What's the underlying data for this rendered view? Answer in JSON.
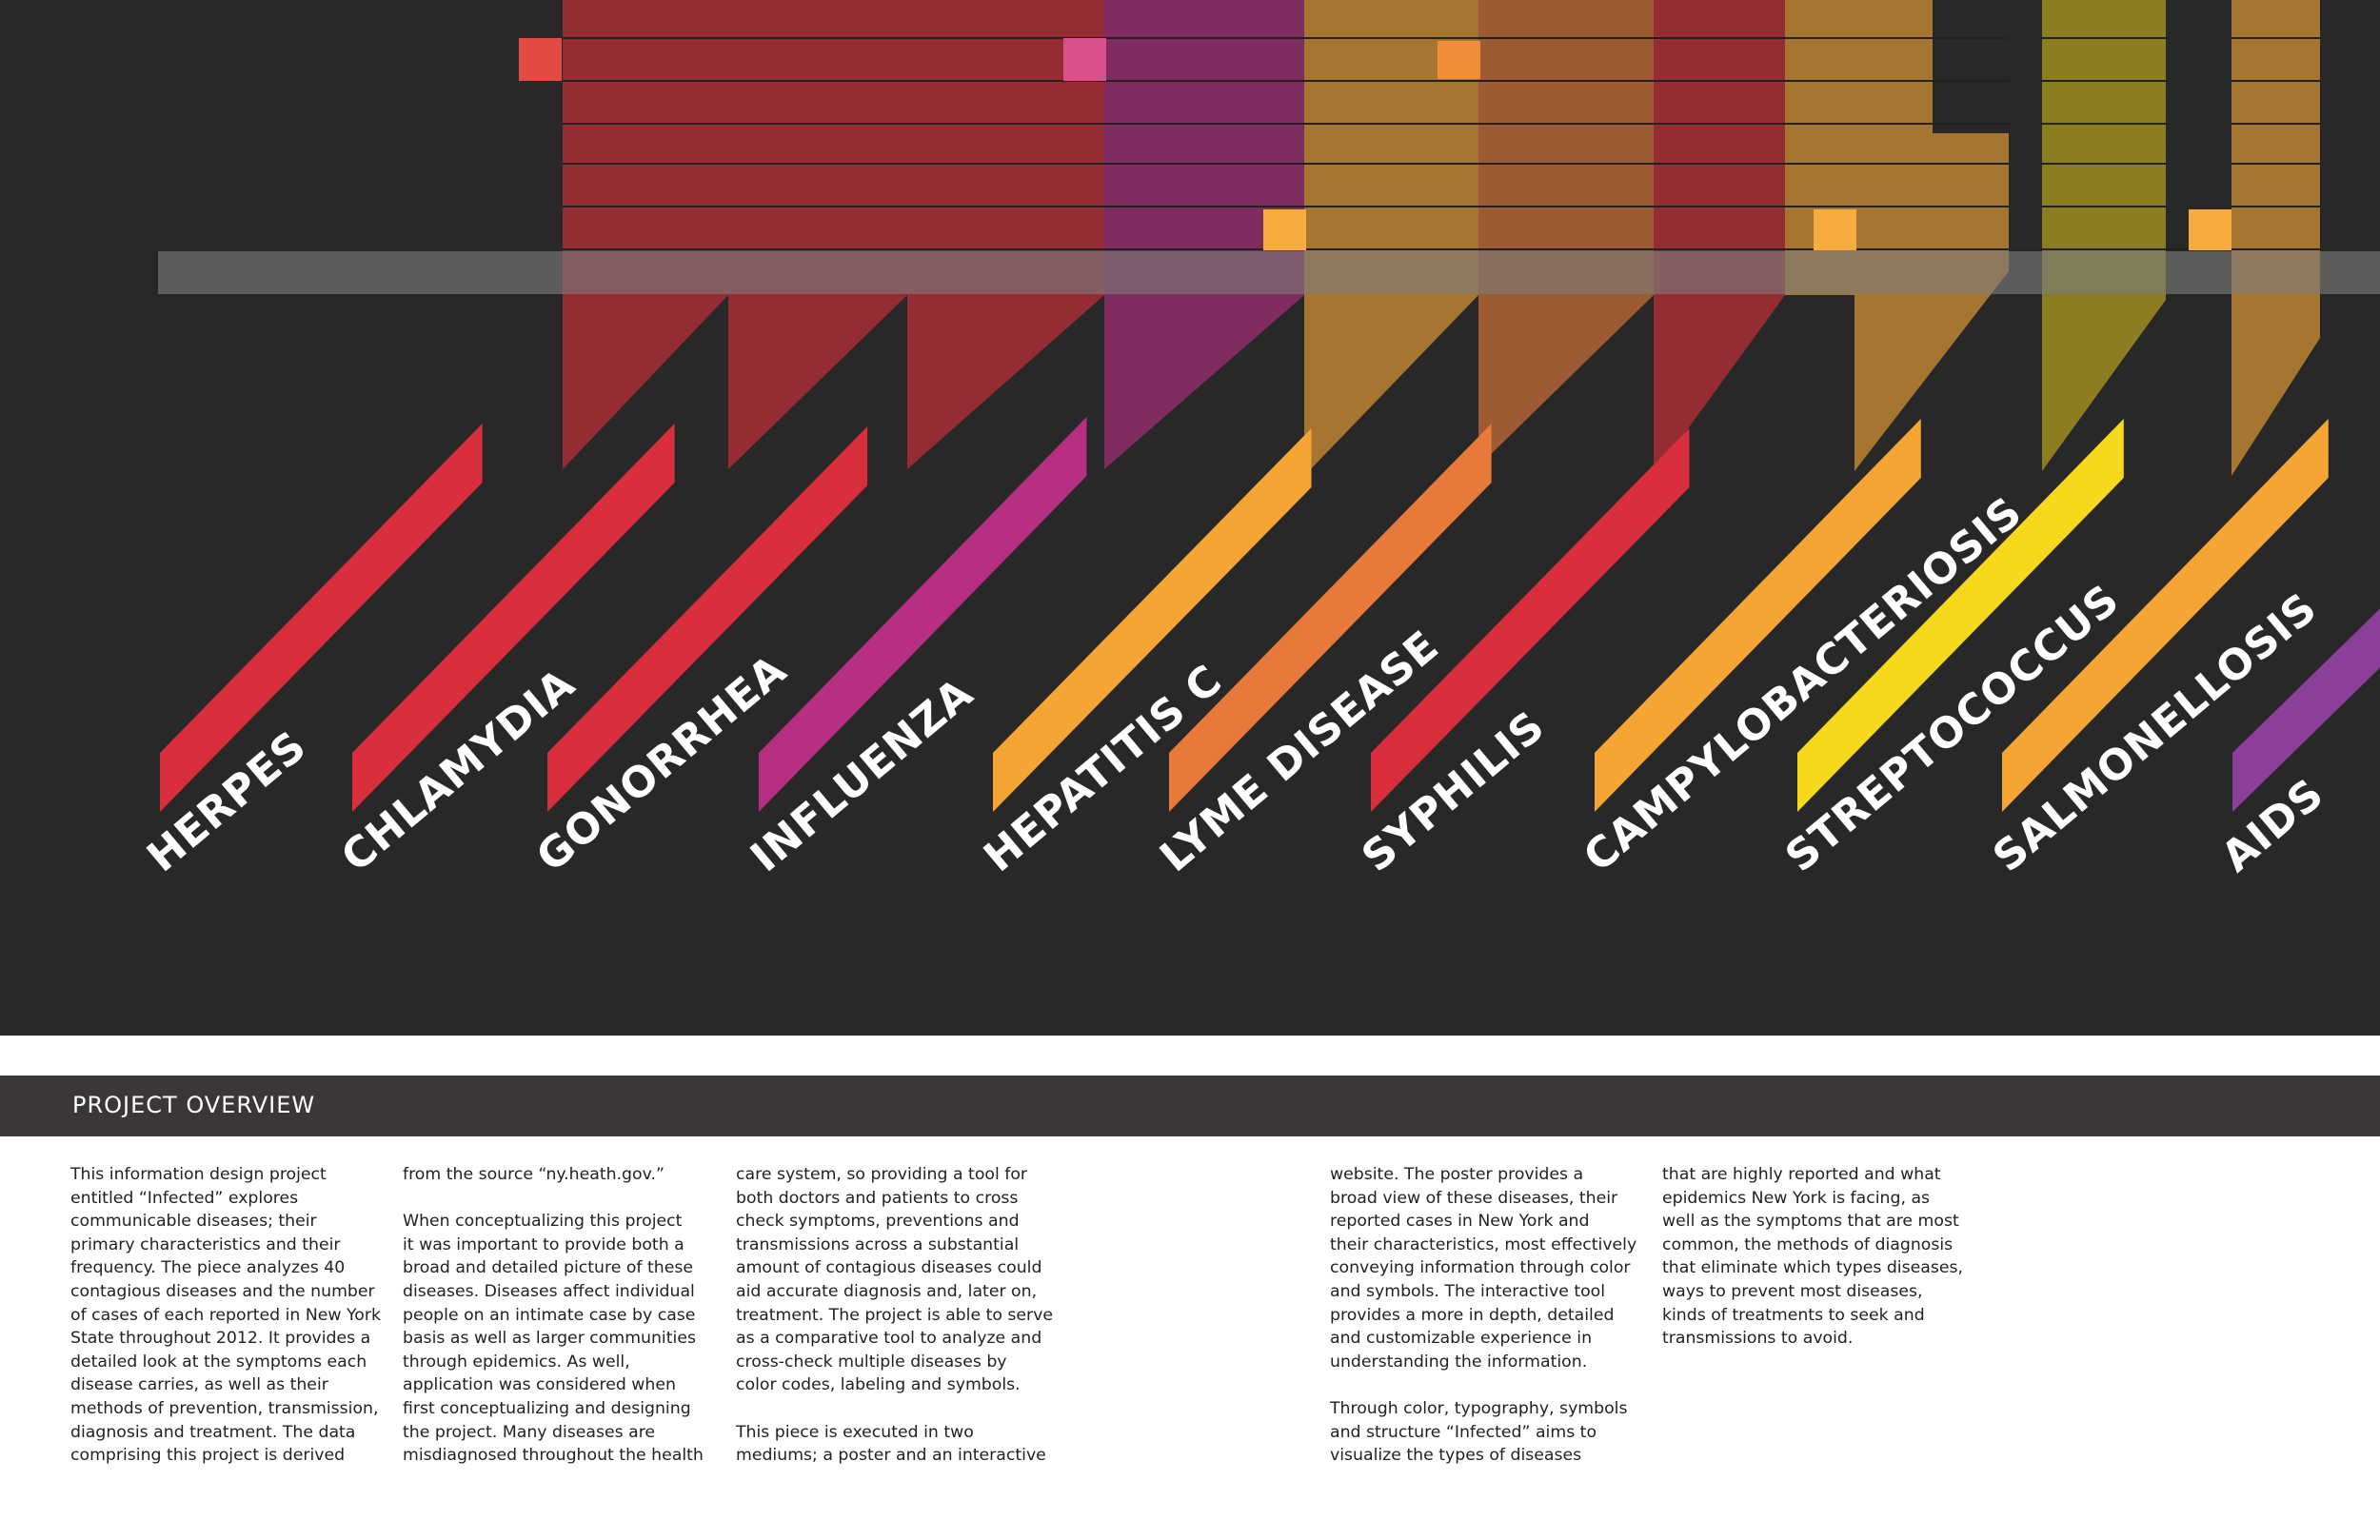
{
  "diseases": [
    {
      "name": "HERPES",
      "color": "#d92e3b"
    },
    {
      "name": "CHLAMYDIA",
      "color": "#d92e3b"
    },
    {
      "name": "GONORRHEA",
      "color": "#d92e3b"
    },
    {
      "name": "INFLUENZA",
      "color": "#b72f83"
    },
    {
      "name": "HEPATITIS C",
      "color": "#f4a534"
    },
    {
      "name": "LYME DISEASE",
      "color": "#e7793a"
    },
    {
      "name": "SYPHILIS",
      "color": "#d92e3b"
    },
    {
      "name": "CAMPYLOBACTERIOSIS",
      "color": "#f4a534"
    },
    {
      "name": "STREPTOCOCCUS",
      "color": "#f6d81c"
    },
    {
      "name": "SALMONELLOSIS",
      "color": "#f4a534"
    },
    {
      "name": "AIDS",
      "color": "#8c3f99"
    }
  ],
  "overview": {
    "title": "PROJECT OVERVIEW",
    "columns": [
      "This information design project\nentitled “Infected” explores\ncommunicable diseases; their\nprimary characteristics and their\nfrequency. The piece analyzes 40\ncontagious diseases and the number\nof cases of each reported in New York\nState throughout 2012. It provides a\ndetailed look at the symptoms each\ndisease carries, as well as their\nmethods of prevention, transmission,\ndiagnosis and treatment. The data\ncomprising this project is derived",
      "from the source “ny.heath.gov.”\n\nWhen conceptualizing this project\nit was important to provide both a\nbroad and detailed picture of these\ndiseases. Diseases affect individual\npeople on an intimate case by case\nbasis as well as larger communities\nthrough epidemics. As well,\napplication was considered when\nfirst conceptualizing and designing\nthe project. Many diseases are\nmisdiagnosed throughout the health",
      "care system, so providing a tool for\nboth doctors and patients to cross\ncheck symptoms, preventions and\ntransmissions across a substantial\namount of contagious diseases could\naid accurate diagnosis and, later on,\ntreatment. The project is able to serve\nas a comparative tool to analyze and\ncross-check multiple diseases by\ncolor codes, labeling and symbols.\n\nThis piece is executed in two\nmediums; a poster and an interactive",
      "website. The poster provides a\nbroad view of these diseases, their\nreported cases in New York and\ntheir characteristics, most effectively\nconveying information through color\nand symbols. The interactive tool\nprovides a more in depth, detailed\nand customizable experience in\nunderstanding the information.\n\nThrough color, typography, symbols\nand structure “Infected” aims to\nvisualize the types of diseases",
      "that are highly reported and what\nepidemics New York is facing, as\nwell as the symptoms that are most\ncommon, the methods of diagnosis\nthat eliminate which types diseases,\nways to prevent most diseases,\nkinds of treatments to seek and\ntransmissions to avoid."
    ]
  }
}
